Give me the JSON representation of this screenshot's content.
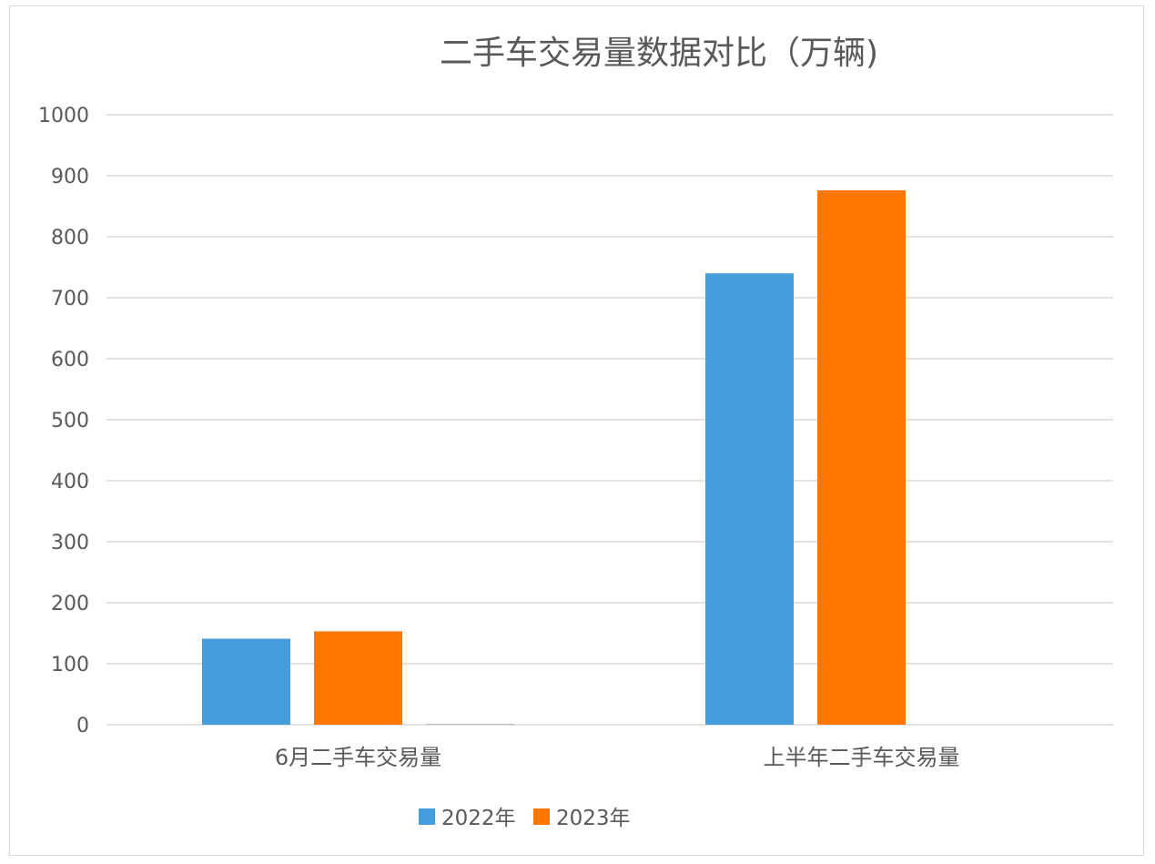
{
  "chart_data": {
    "type": "bar",
    "title": "二手车交易量数据对比（万辆)",
    "categories": [
      "6月二手车交易量",
      "上半年二手车交易量"
    ],
    "series": [
      {
        "name": "2022年",
        "values": [
          141,
          740
        ],
        "color": "#459ddb"
      },
      {
        "name": "2023年",
        "values": [
          153,
          876
        ],
        "color": "#ff7600"
      },
      {
        "name": "",
        "values": [
          1,
          0
        ],
        "color": "#a5a5a5"
      }
    ],
    "ylim": [
      0,
      1000
    ],
    "yticks": [
      0,
      100,
      200,
      300,
      400,
      500,
      600,
      700,
      800,
      900,
      1000
    ],
    "grid": true,
    "legend_position": "bottom",
    "xlabel": "",
    "ylabel": ""
  }
}
